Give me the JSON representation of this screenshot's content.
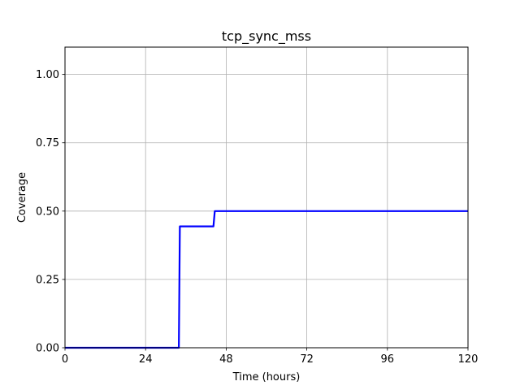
{
  "chart_data": {
    "type": "line",
    "title": "tcp_sync_mss",
    "xlabel": "Time (hours)",
    "ylabel": "Coverage",
    "xlim": [
      0,
      120
    ],
    "ylim": [
      0,
      1.1
    ],
    "xticks": [
      0,
      24,
      48,
      72,
      96,
      120
    ],
    "yticks": [
      0.0,
      0.25,
      0.5,
      0.75,
      1.0
    ],
    "xtick_labels": [
      "0",
      "24",
      "48",
      "72",
      "96",
      "120"
    ],
    "ytick_labels": [
      "0.00",
      "0.25",
      "0.50",
      "0.75",
      "1.00"
    ],
    "grid": true,
    "series": [
      {
        "color": "#0000ff",
        "x": [
          0,
          33.9,
          34.2,
          44.2,
          44.6,
          120
        ],
        "y": [
          0,
          0,
          0.444,
          0.444,
          0.5,
          0.5
        ]
      }
    ]
  }
}
